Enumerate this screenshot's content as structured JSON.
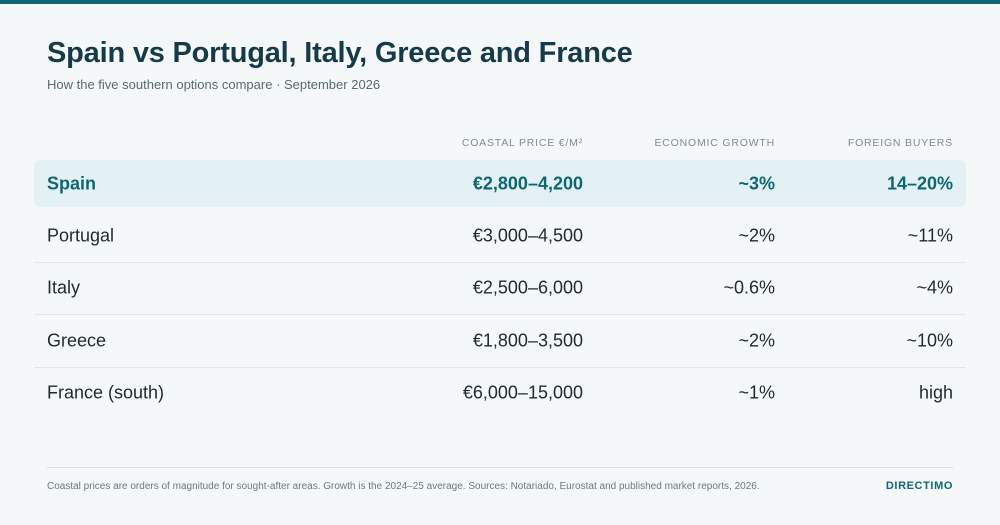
{
  "header": {
    "title": "Spain vs Portugal, Italy, Greece and France",
    "subtitle": "How the five southern options compare · September 2026"
  },
  "table": {
    "columns": {
      "country": "",
      "price": "Coastal price €/m²",
      "growth": "Economic growth",
      "buyers": "Foreign buyers"
    },
    "rows": [
      {
        "country": "Spain",
        "price": "€2,800–4,200",
        "growth": "~3%",
        "buyers": "14–20%",
        "highlighted": true
      },
      {
        "country": "Portugal",
        "price": "€3,000–4,500",
        "growth": "~2%",
        "buyers": "~11%",
        "highlighted": false
      },
      {
        "country": "Italy",
        "price": "€2,500–6,000",
        "growth": "~0.6%",
        "buyers": "~4%",
        "highlighted": false
      },
      {
        "country": "Greece",
        "price": "€1,800–3,500",
        "growth": "~2%",
        "buyers": "~10%",
        "highlighted": false
      },
      {
        "country": "France (south)",
        "price": "€6,000–15,000",
        "growth": "~1%",
        "buyers": "high",
        "highlighted": false
      }
    ]
  },
  "footer": {
    "note": "Coastal prices are orders of magnitude for sought-after areas. Growth is the 2024–25 average. Sources: Notariado, Eurostat and published market reports, 2026.",
    "brand": "DIRECTIMO"
  },
  "colors": {
    "accent": "#0f6772",
    "title": "#163a48",
    "highlight_bg": "#e3f1f5",
    "background": "#f4f8f9"
  }
}
